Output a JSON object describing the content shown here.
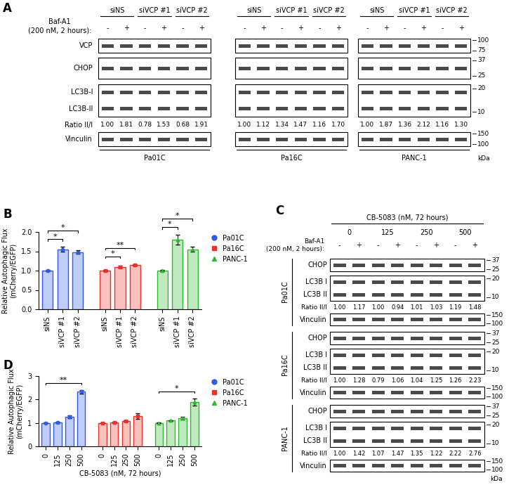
{
  "panel_labels": [
    "A",
    "B",
    "C",
    "D"
  ],
  "blot_A": {
    "treatment": [
      "Baf-A1",
      "(200 nM, 2 hours):"
    ],
    "signs": [
      "-",
      "+"
    ],
    "groups": [
      "siNS",
      "siVCP #1",
      "siVCP #2"
    ],
    "rows": [
      {
        "label": [
          "VCP"
        ],
        "markers": [
          100,
          75
        ]
      },
      {
        "label": [
          "CHOP"
        ],
        "markers": [
          37,
          25
        ]
      },
      {
        "label": [
          "LC3B-I",
          "LC3B-II"
        ],
        "markers": [
          20,
          10
        ]
      },
      {
        "label": [
          "Vinculin"
        ],
        "markers": [
          150,
          100
        ]
      }
    ],
    "ratio_label": "Ratio II/I",
    "cell_lines": [
      {
        "name": "Pa01C",
        "ratios": [
          "1.00",
          "1.81",
          "0.78",
          "1.53",
          "0.68",
          "1.91"
        ]
      },
      {
        "name": "Pa16C",
        "ratios": [
          "1.00",
          "1.12",
          "1.34",
          "1.47",
          "1.16",
          "1.70"
        ]
      },
      {
        "name": "PANC-1",
        "ratios": [
          "1.00",
          "1.87",
          "1.36",
          "2.12",
          "1.16",
          "1.30"
        ]
      }
    ],
    "unit": "kDa"
  },
  "blot_C": {
    "title": "CB-5083 (nM, 72 hours)",
    "doses": [
      0,
      125,
      250,
      500
    ],
    "treatment": [
      "Baf-A1",
      "(200 nM, 2 hours):"
    ],
    "signs": [
      "-",
      "+"
    ],
    "rows": [
      {
        "label": [
          "CHOP"
        ],
        "markers": [
          37,
          25
        ]
      },
      {
        "label": [
          "LC3B I",
          "LC3B II"
        ],
        "markers": [
          20,
          10
        ]
      },
      {
        "label": [
          "Vinculin"
        ],
        "markers": [
          150,
          100
        ]
      }
    ],
    "ratio_label": "Ratio II/I",
    "cell_lines": [
      {
        "name": "Pa01C",
        "ratios": [
          "1.00",
          "1.17",
          "1.00",
          "0.94",
          "1.01",
          "1.03",
          "1.19",
          "1.48"
        ]
      },
      {
        "name": "Pa16C",
        "ratios": [
          "1.00",
          "1.28",
          "0.79",
          "1.06",
          "1.04",
          "1.25",
          "1.26",
          "2.23"
        ]
      },
      {
        "name": "PANC-1",
        "ratios": [
          "1.00",
          "1.42",
          "1.07",
          "1.47",
          "1.35",
          "1.22",
          "2.22",
          "2.76"
        ]
      }
    ],
    "unit": "kDa"
  },
  "chart_data": [
    {
      "type": "bar",
      "y_label": "Relative Autophagic Flux\n(mCherry/EGFP)",
      "ylim": [
        0,
        2.0
      ],
      "yticks": [
        {
          "value": 0,
          "label": "0.0"
        },
        {
          "value": 0.5,
          "label": "0.5"
        },
        {
          "value": 1.0,
          "label": "1.0"
        },
        {
          "value": 1.5,
          "label": "1.5"
        },
        {
          "value": 2.0,
          "label": "2.0"
        }
      ],
      "legend": "upper left",
      "series": [
        {
          "name": "Pa01C",
          "color": "#2f5be8",
          "marker": "circle",
          "categories": [
            "siNS",
            "siVCP #1",
            "siVCP #2"
          ],
          "values": [
            1.0,
            1.55,
            1.48
          ],
          "errors": [
            0.01,
            0.06,
            0.04
          ]
        },
        {
          "name": "Pa16C",
          "color": "#e8332a",
          "marker": "square",
          "categories": [
            "siNS",
            "siVCP #1",
            "siVCP #2"
          ],
          "values": [
            1.0,
            1.1,
            1.15
          ],
          "errors": [
            0.01,
            0.02,
            0.02
          ]
        },
        {
          "name": "PANC-1",
          "color": "#2eb82e",
          "marker": "triangle",
          "categories": [
            "siNS",
            "siVCP #1",
            "siVCP #2"
          ],
          "values": [
            1.0,
            1.8,
            1.55
          ],
          "errors": [
            0.01,
            0.12,
            0.06
          ]
        }
      ],
      "significance": [
        {
          "series": "Pa01C",
          "from": "siNS",
          "to": "siVCP #1",
          "label": "*"
        },
        {
          "series": "Pa01C",
          "from": "siNS",
          "to": "siVCP #2",
          "label": "*"
        },
        {
          "series": "Pa16C",
          "from": "siNS",
          "to": "siVCP #1",
          "label": "*"
        },
        {
          "series": "Pa16C",
          "from": "siNS",
          "to": "siVCP #2",
          "label": "**"
        },
        {
          "series": "PANC-1",
          "from": "siNS",
          "to": "siVCP #1",
          "label": "*"
        },
        {
          "series": "PANC-1",
          "from": "siNS",
          "to": "siVCP #2",
          "label": "*"
        }
      ]
    },
    {
      "type": "bar",
      "y_label": "Relative Autophagic Flux\n(mCherry/EGFP)",
      "x_label": "CB-5083 (nM, 72 hours)",
      "ylim": [
        0,
        3
      ],
      "yticks": [
        0,
        1,
        2,
        3
      ],
      "legend": "upper left",
      "series": [
        {
          "name": "Pa01C",
          "color": "#2f5be8",
          "marker": "circle",
          "categories": [
            "0",
            "125",
            "250",
            "500"
          ],
          "values": [
            1.0,
            1.02,
            1.25,
            2.33
          ],
          "errors": [
            0.01,
            0.02,
            0.06,
            0.08
          ]
        },
        {
          "name": "Pa16C",
          "color": "#e8332a",
          "marker": "square",
          "categories": [
            "0",
            "125",
            "250",
            "500"
          ],
          "values": [
            1.0,
            1.02,
            1.08,
            1.28
          ],
          "errors": [
            0.01,
            0.02,
            0.04,
            0.12
          ]
        },
        {
          "name": "PANC-1",
          "color": "#2eb82e",
          "marker": "triangle",
          "categories": [
            "0",
            "125",
            "250",
            "500"
          ],
          "values": [
            1.0,
            1.1,
            1.2,
            1.88
          ],
          "errors": [
            0.01,
            0.02,
            0.06,
            0.15
          ]
        }
      ],
      "significance": [
        {
          "series": "Pa01C",
          "from": "0",
          "to": "500",
          "label": "**"
        },
        {
          "series": "PANC-1",
          "from": "0",
          "to": "500",
          "label": "*"
        }
      ]
    }
  ]
}
